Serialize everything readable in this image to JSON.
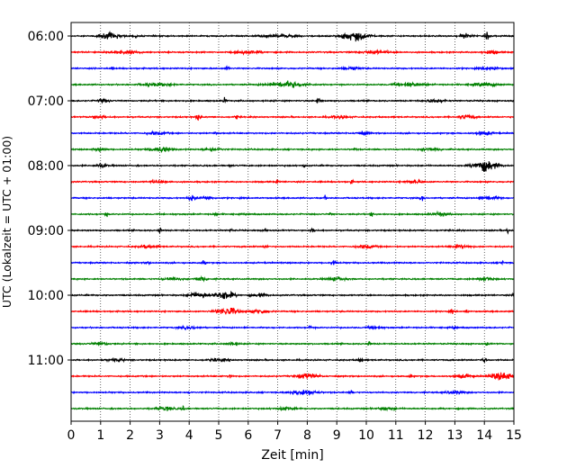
{
  "chart_data": {
    "type": "line",
    "xlabel": "Zeit  [min]",
    "ylabel": "UTC (Lokalzeit = UTC + 01:00)",
    "xlim": [
      0,
      15
    ],
    "x_ticks": [
      "0",
      "1",
      "2",
      "3",
      "4",
      "5",
      "6",
      "7",
      "8",
      "9",
      "10",
      "11",
      "12",
      "13",
      "14",
      "15"
    ],
    "y_ticks": [
      "06:00",
      "07:00",
      "08:00",
      "09:00",
      "10:00",
      "11:00"
    ],
    "grid": "vertical dotted",
    "trace_colors": [
      "#000000",
      "#ff0000",
      "#0000ff",
      "#008000"
    ],
    "traces_per_hour": 4,
    "trace_minutes": 15,
    "series": [
      {
        "start": "06:00",
        "color": "#000000",
        "events": [
          [
            1.3,
            0.55,
            0.35
          ],
          [
            2.2,
            0.35,
            0.05
          ],
          [
            7.1,
            0.2,
            0.6
          ],
          [
            9.6,
            0.8,
            0.45
          ],
          [
            13.4,
            0.4,
            0.2
          ],
          [
            14.1,
            0.7,
            0.08
          ]
        ]
      },
      {
        "start": "06:15",
        "color": "#ff0000",
        "events": [
          [
            1.8,
            0.3,
            0.5
          ],
          [
            6.0,
            0.25,
            0.4
          ],
          [
            10.3,
            0.25,
            0.5
          ],
          [
            14.2,
            0.35,
            0.25
          ]
        ]
      },
      {
        "start": "06:30",
        "color": "#0000ff",
        "events": [
          [
            1.4,
            0.3,
            0.05
          ],
          [
            5.3,
            0.4,
            0.06
          ],
          [
            9.5,
            0.25,
            0.3
          ],
          [
            14.2,
            0.25,
            0.3
          ]
        ]
      },
      {
        "start": "06:45",
        "color": "#008000",
        "events": [
          [
            2.9,
            0.25,
            0.5
          ],
          [
            7.3,
            0.55,
            0.6
          ],
          [
            11.5,
            0.3,
            0.5
          ],
          [
            14.0,
            0.3,
            0.4
          ]
        ]
      },
      {
        "start": "07:00",
        "color": "#000000",
        "events": [
          [
            1.1,
            0.25,
            0.2
          ],
          [
            5.2,
            0.55,
            0.05
          ],
          [
            8.4,
            0.5,
            0.08
          ],
          [
            12.3,
            0.3,
            0.3
          ]
        ]
      },
      {
        "start": "07:15",
        "color": "#ff0000",
        "events": [
          [
            0.9,
            0.25,
            0.25
          ],
          [
            4.3,
            0.6,
            0.08
          ],
          [
            5.6,
            0.45,
            0.05
          ],
          [
            9.1,
            0.25,
            0.3
          ],
          [
            13.4,
            0.35,
            0.25
          ]
        ]
      },
      {
        "start": "07:30",
        "color": "#0000ff",
        "events": [
          [
            2.9,
            0.25,
            0.3
          ],
          [
            4.9,
            0.3,
            0.05
          ],
          [
            9.9,
            0.3,
            0.2
          ],
          [
            14.0,
            0.3,
            0.3
          ]
        ]
      },
      {
        "start": "07:45",
        "color": "#008000",
        "events": [
          [
            1.0,
            0.3,
            0.2
          ],
          [
            3.0,
            0.45,
            0.35
          ],
          [
            4.8,
            0.25,
            0.3
          ],
          [
            9.6,
            0.3,
            0.05
          ],
          [
            12.2,
            0.25,
            0.3
          ]
        ]
      },
      {
        "start": "08:00",
        "color": "#000000",
        "events": [
          [
            1.0,
            0.3,
            0.2
          ],
          [
            5.4,
            0.2,
            0.05
          ],
          [
            7.9,
            0.45,
            0.05
          ],
          [
            14.1,
            0.85,
            0.35
          ],
          [
            13.8,
            0.4,
            0.3
          ]
        ]
      },
      {
        "start": "08:15",
        "color": "#ff0000",
        "events": [
          [
            3.0,
            0.25,
            0.3
          ],
          [
            7.0,
            0.3,
            0.05
          ],
          [
            9.5,
            0.35,
            0.05
          ],
          [
            11.6,
            0.25,
            0.3
          ]
        ]
      },
      {
        "start": "08:30",
        "color": "#0000ff",
        "events": [
          [
            4.1,
            0.55,
            0.12
          ],
          [
            4.6,
            0.3,
            0.2
          ],
          [
            8.6,
            0.35,
            0.05
          ],
          [
            11.9,
            0.55,
            0.06
          ],
          [
            14.2,
            0.4,
            0.3
          ]
        ]
      },
      {
        "start": "08:45",
        "color": "#008000",
        "events": [
          [
            1.2,
            0.35,
            0.05
          ],
          [
            4.9,
            0.4,
            0.06
          ],
          [
            8.8,
            0.3,
            0.05
          ],
          [
            10.2,
            0.45,
            0.05
          ],
          [
            12.5,
            0.3,
            0.3
          ]
        ]
      },
      {
        "start": "09:00",
        "color": "#000000",
        "events": [
          [
            3.0,
            0.45,
            0.05
          ],
          [
            5.4,
            0.35,
            0.05
          ],
          [
            6.6,
            0.3,
            0.05
          ],
          [
            8.2,
            0.3,
            0.1
          ],
          [
            14.8,
            0.5,
            0.05
          ]
        ]
      },
      {
        "start": "09:15",
        "color": "#ff0000",
        "events": [
          [
            2.6,
            0.25,
            0.3
          ],
          [
            6.6,
            0.4,
            0.06
          ],
          [
            10.0,
            0.3,
            0.3
          ],
          [
            13.2,
            0.3,
            0.3
          ]
        ]
      },
      {
        "start": "09:30",
        "color": "#0000ff",
        "events": [
          [
            2.6,
            0.3,
            0.05
          ],
          [
            4.5,
            0.45,
            0.06
          ],
          [
            8.9,
            0.5,
            0.08
          ],
          [
            14.6,
            0.4,
            0.05
          ]
        ]
      },
      {
        "start": "09:45",
        "color": "#008000",
        "events": [
          [
            3.4,
            0.25,
            0.3
          ],
          [
            4.4,
            0.45,
            0.2
          ],
          [
            9.0,
            0.3,
            0.3
          ],
          [
            14.0,
            0.3,
            0.3
          ]
        ]
      },
      {
        "start": "10:00",
        "color": "#000000",
        "events": [
          [
            4.3,
            0.5,
            0.3
          ],
          [
            5.2,
            0.85,
            0.3
          ],
          [
            6.4,
            0.3,
            0.25
          ],
          [
            15.0,
            0.7,
            0.03
          ]
        ]
      },
      {
        "start": "10:15",
        "color": "#ff0000",
        "events": [
          [
            5.3,
            0.75,
            0.35
          ],
          [
            6.4,
            0.35,
            0.3
          ],
          [
            12.9,
            0.45,
            0.05
          ],
          [
            13.4,
            0.4,
            0.05
          ]
        ]
      },
      {
        "start": "10:30",
        "color": "#0000ff",
        "events": [
          [
            4.0,
            0.25,
            0.3
          ],
          [
            8.1,
            0.35,
            0.05
          ],
          [
            10.3,
            0.3,
            0.2
          ],
          [
            13.0,
            0.35,
            0.05
          ]
        ]
      },
      {
        "start": "10:45",
        "color": "#008000",
        "events": [
          [
            1.0,
            0.25,
            0.3
          ],
          [
            5.5,
            0.3,
            0.2
          ],
          [
            10.1,
            0.4,
            0.05
          ],
          [
            14.1,
            0.4,
            0.05
          ]
        ]
      },
      {
        "start": "11:00",
        "color": "#000000",
        "events": [
          [
            1.5,
            0.25,
            0.3
          ],
          [
            5.0,
            0.25,
            0.3
          ],
          [
            9.8,
            0.5,
            0.08
          ],
          [
            14.0,
            0.35,
            0.1
          ]
        ]
      },
      {
        "start": "11:15",
        "color": "#ff0000",
        "events": [
          [
            5.4,
            0.45,
            0.06
          ],
          [
            8.0,
            0.45,
            0.35
          ],
          [
            11.5,
            0.35,
            0.05
          ],
          [
            13.3,
            0.3,
            0.3
          ],
          [
            14.6,
            0.75,
            0.35
          ]
        ]
      },
      {
        "start": "11:30",
        "color": "#0000ff",
        "events": [
          [
            4.0,
            0.35,
            0.05
          ],
          [
            7.9,
            0.5,
            0.4
          ],
          [
            9.5,
            0.35,
            0.06
          ],
          [
            13.0,
            0.25,
            0.3
          ]
        ]
      },
      {
        "start": "11:45",
        "color": "#008000",
        "events": [
          [
            3.2,
            0.3,
            0.3
          ],
          [
            3.8,
            0.45,
            0.05
          ],
          [
            7.3,
            0.25,
            0.3
          ],
          [
            10.7,
            0.25,
            0.3
          ]
        ]
      }
    ]
  }
}
